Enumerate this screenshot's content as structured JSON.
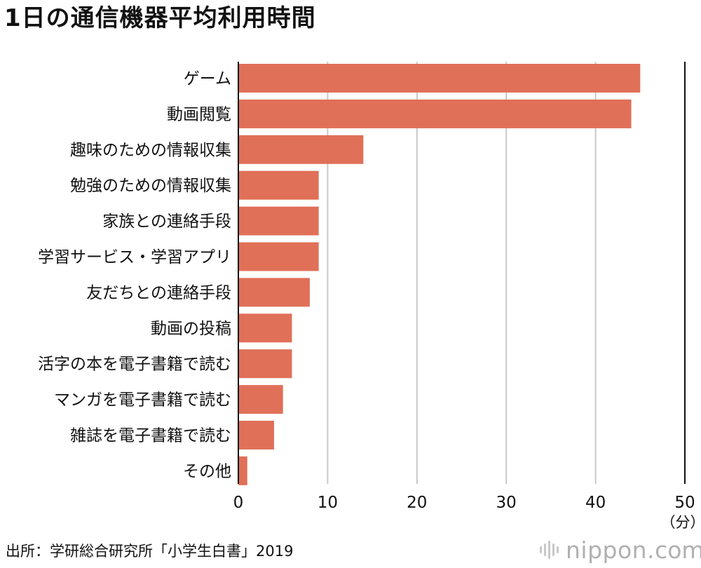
{
  "title": "1日の通信機器平均利用時間",
  "source": "出所：学研総合研究所「小学生白書」2019",
  "logo": {
    "brand": "nippon.",
    "domain": "com"
  },
  "chart_data": {
    "type": "bar",
    "orientation": "horizontal",
    "categories": [
      "ゲーム",
      "動画閲覧",
      "趣味のための情報収集",
      "勉強のための情報収集",
      "家族との連絡手段",
      "学習サービス・学習アプリ",
      "友だちとの連絡手段",
      "動画の投稿",
      "活字の本を電子書籍で読む",
      "マンガを電子書籍で読む",
      "雑誌を電子書籍で読む",
      "その他"
    ],
    "values": [
      45,
      44,
      14,
      9,
      9,
      9,
      8,
      6,
      6,
      5,
      4,
      1
    ],
    "xlim": [
      0,
      50
    ],
    "xticks": [
      "0",
      "10",
      "20",
      "30",
      "40",
      "50"
    ],
    "unit": "（分）",
    "grid": true,
    "bar_color": "#e07058",
    "grid_color": "#c8c8c8"
  }
}
